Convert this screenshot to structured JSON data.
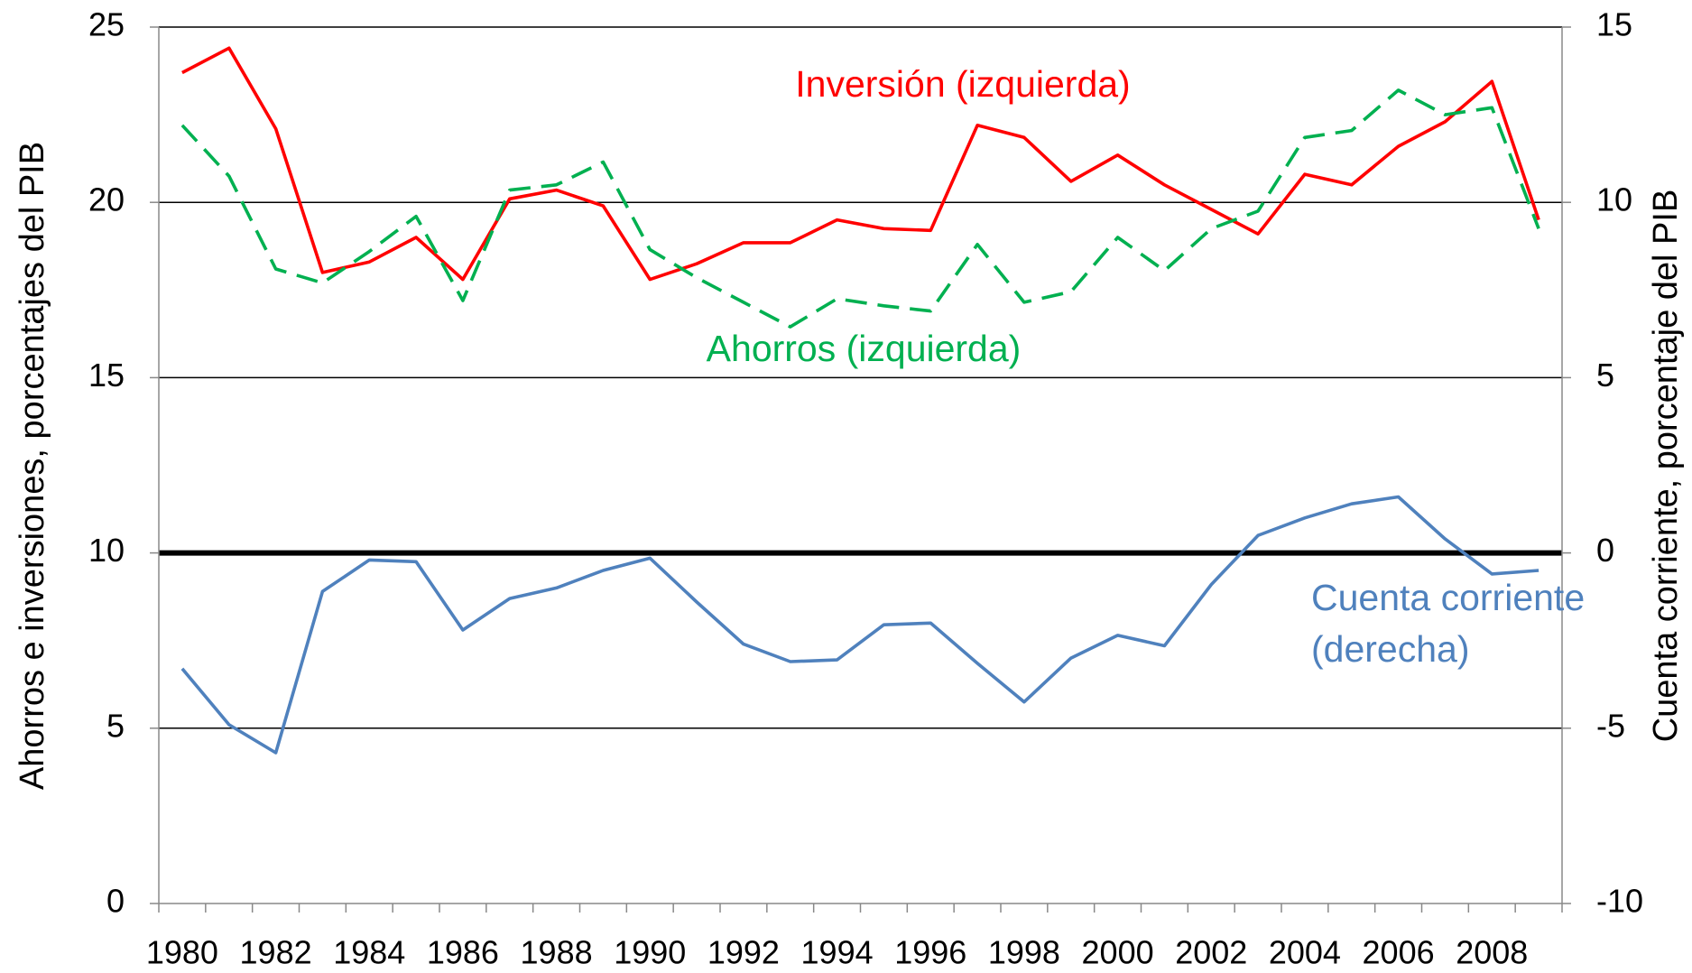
{
  "chart_data": {
    "type": "line",
    "y_label": "Ahorros e inversiones, porcentajes del PIB",
    "y2_label": "Cuenta corriente, porcentaje del PIB",
    "x": [
      1980,
      1981,
      1982,
      1983,
      1984,
      1985,
      1986,
      1987,
      1988,
      1989,
      1990,
      1991,
      1992,
      1993,
      1994,
      1995,
      1996,
      1997,
      1998,
      1999,
      2000,
      2001,
      2002,
      2003,
      2004,
      2005,
      2006,
      2007,
      2008,
      2009
    ],
    "xlim": [
      1979.5,
      2009.5
    ],
    "xticks": [
      1980,
      1982,
      1984,
      1986,
      1988,
      1990,
      1992,
      1994,
      1996,
      1998,
      2000,
      2002,
      2004,
      2006,
      2008
    ],
    "ylim": [
      0,
      25
    ],
    "yticks": [
      0,
      5,
      10,
      15,
      20,
      25
    ],
    "y2lim": [
      -10,
      15
    ],
    "y2ticks": [
      -10,
      -5,
      0,
      5,
      10,
      15
    ],
    "grid": true,
    "series": [
      {
        "name": "Inversión (izquierda)",
        "color": "#ff0000",
        "dashed": false,
        "values": [
          23.7,
          24.4,
          22.1,
          18.0,
          18.3,
          19.0,
          17.8,
          20.1,
          20.35,
          19.9,
          17.8,
          18.25,
          18.85,
          18.85,
          19.5,
          19.25,
          19.2,
          22.2,
          21.85,
          20.6,
          21.35,
          20.5,
          19.8,
          19.1,
          20.8,
          20.5,
          21.6,
          22.3,
          23.45,
          19.5
        ]
      },
      {
        "name": "Ahorros (izquierda)",
        "color": "#00b050",
        "dashed": true,
        "values": [
          22.2,
          20.75,
          18.1,
          17.7,
          18.6,
          19.6,
          17.2,
          20.35,
          20.5,
          21.15,
          18.65,
          17.85,
          17.15,
          16.45,
          17.25,
          17.05,
          16.9,
          18.8,
          17.15,
          17.45,
          19.0,
          18.05,
          19.25,
          19.75,
          21.85,
          22.05,
          23.2,
          22.5,
          22.7,
          19.25
        ]
      },
      {
        "name": [
          "Cuenta corriente",
          "(derecha)"
        ],
        "color": "#4f81bd",
        "dashed": false,
        "axis": "y2",
        "values": [
          -3.3,
          -4.9,
          -5.7,
          -1.1,
          -0.2,
          -0.25,
          -2.2,
          -1.3,
          -1.0,
          -0.5,
          -0.15,
          -1.4,
          -2.6,
          -3.1,
          -3.05,
          -2.05,
          -2.0,
          -3.15,
          -4.25,
          -3.0,
          -2.35,
          -2.65,
          -0.9,
          0.5,
          1.0,
          1.4,
          1.6,
          0.4,
          -0.6,
          -0.5
        ]
      }
    ]
  }
}
